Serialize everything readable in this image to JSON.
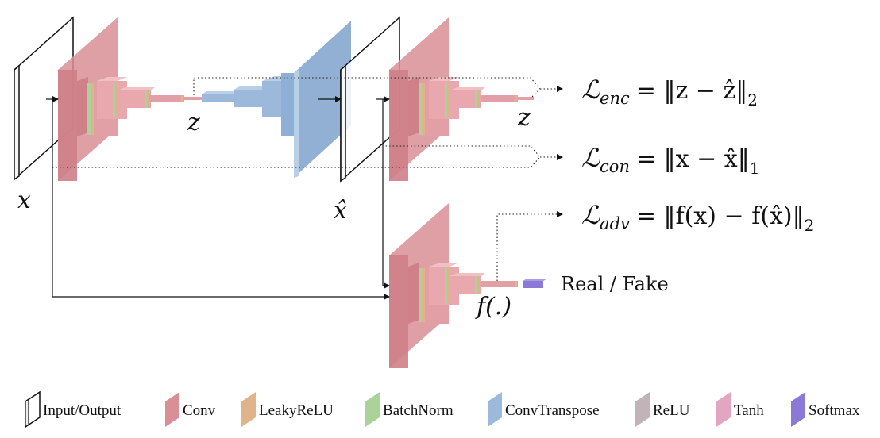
{
  "labels": {
    "x": "x",
    "x_hat": "x̂",
    "z_generator": "z",
    "z_encoder": "z",
    "f": "f(.)",
    "real_fake": "Real / Fake"
  },
  "losses": {
    "enc": {
      "name": "enc",
      "formula": "= ‖z − ẑ‖",
      "norm": "2"
    },
    "con": {
      "name": "con",
      "formula": "= ‖x − x̂‖",
      "norm": "1"
    },
    "adv": {
      "name": "adv",
      "formula": "= ‖f(x) − f(x̂)‖",
      "norm": "2"
    }
  },
  "legend": [
    {
      "label": "Input/Output",
      "icon": "input-output-icon",
      "color": "#ffffff"
    },
    {
      "label": "Conv",
      "icon": "conv-icon",
      "color": "#d98f95"
    },
    {
      "label": "LeakyReLU",
      "icon": "leakyrelu-icon",
      "color": "#e0b48a"
    },
    {
      "label": "BatchNorm",
      "icon": "batchnorm-icon",
      "color": "#a9d39a"
    },
    {
      "label": "ConvTranspose",
      "icon": "convtranspose-icon",
      "color": "#9cb9dc"
    },
    {
      "label": "ReLU",
      "icon": "relu-icon",
      "color": "#c1b3b8"
    },
    {
      "label": "Tanh",
      "icon": "tanh-icon",
      "color": "#e3a6c0"
    },
    {
      "label": "Softmax",
      "icon": "softmax-icon",
      "color": "#8a79d6"
    }
  ],
  "colors": {
    "conv": "#d98f95",
    "conv_side": "#c77880",
    "leakyrelu": "#e0b48a",
    "batchnorm": "#a9d39a",
    "convtranspose": "#9cb9dc",
    "convtranspose_side": "#86a6cf",
    "softmax": "#8a79d6"
  }
}
